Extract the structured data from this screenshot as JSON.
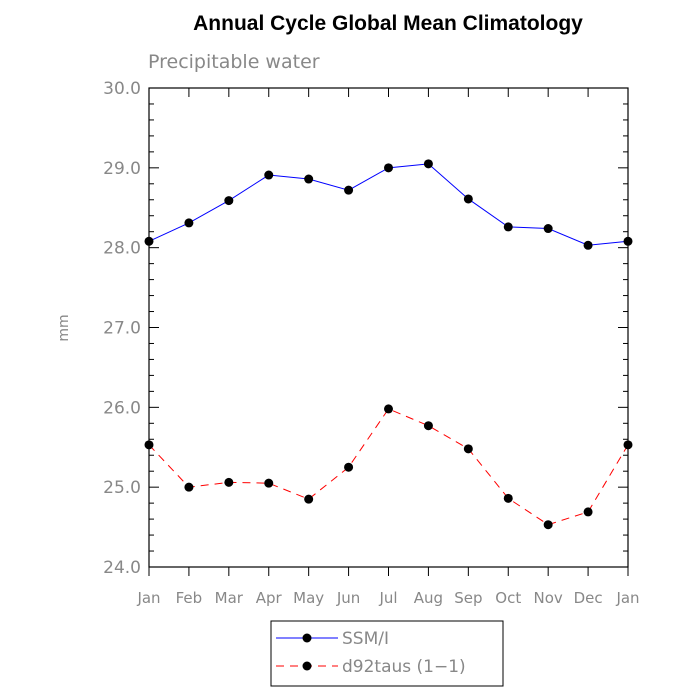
{
  "chart_data": {
    "type": "line",
    "title": "Annual Cycle Global Mean Climatology",
    "subtitle": "Precipitable water",
    "xlabel": "",
    "ylabel": "mm",
    "categories": [
      "Jan",
      "Feb",
      "Mar",
      "Apr",
      "May",
      "Jun",
      "Jul",
      "Aug",
      "Sep",
      "Oct",
      "Nov",
      "Dec",
      "Jan"
    ],
    "ylim": [
      24.0,
      30.0
    ],
    "yticks": [
      "24.0",
      "25.0",
      "26.0",
      "27.0",
      "28.0",
      "29.0",
      "30.0"
    ],
    "legend_position": "bottom-center",
    "series": [
      {
        "name": "SSM/I",
        "color": "#0000ff",
        "dash": "solid",
        "values": [
          28.08,
          28.31,
          28.59,
          28.91,
          28.86,
          28.72,
          29.0,
          29.05,
          28.61,
          28.26,
          28.24,
          28.03,
          28.08
        ]
      },
      {
        "name": "d92taus (1−1)",
        "color": "#ff0000",
        "dash": "dashed",
        "values": [
          25.53,
          25.0,
          25.06,
          25.05,
          24.85,
          25.25,
          25.98,
          25.77,
          25.48,
          24.86,
          24.53,
          24.69,
          25.53
        ]
      }
    ]
  }
}
